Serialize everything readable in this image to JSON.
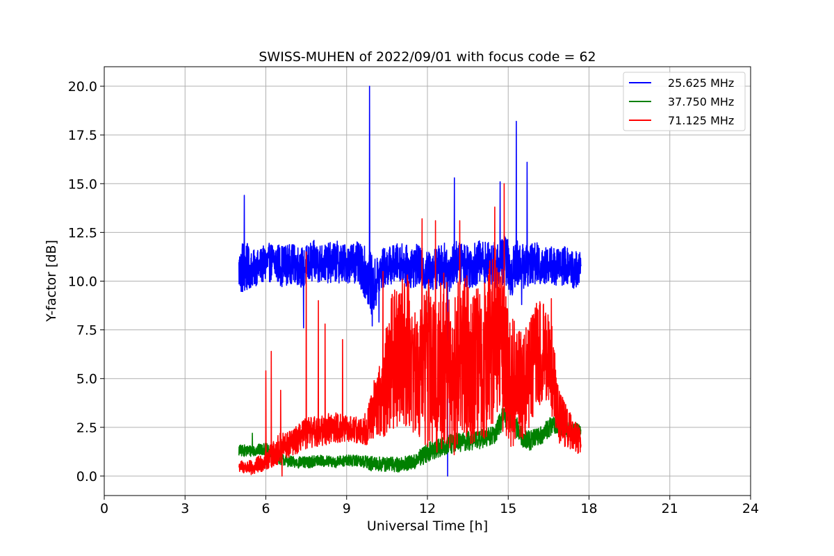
{
  "chart_data": {
    "type": "line",
    "title": "SWISS-MUHEN of 2022/09/01 with focus code = 62",
    "xlabel": "Universal Time [h]",
    "ylabel": "Y-factor [dB]",
    "xlim": [
      0,
      24
    ],
    "ylim": [
      -1,
      21
    ],
    "xticks": [
      0,
      3,
      6,
      9,
      12,
      15,
      18,
      21,
      24
    ],
    "xtick_labels": [
      "0",
      "3",
      "6",
      "9",
      "12",
      "15",
      "18",
      "21",
      "24"
    ],
    "yticks": [
      0,
      2.5,
      5,
      7.5,
      10,
      12.5,
      15,
      17.5,
      20
    ],
    "ytick_labels": [
      "0.0",
      "2.5",
      "5.0",
      "7.5",
      "10.0",
      "12.5",
      "15.0",
      "17.5",
      "20.0"
    ],
    "grid": true,
    "legend_position": "top-right",
    "series": [
      {
        "name": "25.625 MHz",
        "color": "#0000ff",
        "x": [
          5.0,
          5.2,
          5.4,
          5.7,
          6.0,
          6.3,
          6.6,
          7.0,
          7.4,
          7.8,
          8.2,
          8.6,
          9.0,
          9.3,
          9.6,
          9.8,
          10.0,
          10.3,
          10.6,
          11.0,
          11.3,
          11.6,
          12.0,
          12.3,
          12.6,
          12.8,
          13.0,
          13.3,
          13.6,
          14.0,
          14.3,
          14.6,
          14.9,
          15.1,
          15.3,
          15.6,
          15.9,
          16.2,
          16.5,
          16.8,
          17.1,
          17.4,
          17.7
        ],
        "mean": [
          10.5,
          10.8,
          10.6,
          10.7,
          10.9,
          11.0,
          10.8,
          10.9,
          10.7,
          11.0,
          10.9,
          11.0,
          10.9,
          11.0,
          10.6,
          10.2,
          9.6,
          10.6,
          10.8,
          11.0,
          10.7,
          10.8,
          10.5,
          10.7,
          10.8,
          10.6,
          11.0,
          10.9,
          10.8,
          11.0,
          10.9,
          10.8,
          11.2,
          10.3,
          11.0,
          10.7,
          11.0,
          10.8,
          10.9,
          10.7,
          10.8,
          10.6,
          10.6
        ],
        "spread": [
          1.1,
          1.6,
          1.0,
          0.9,
          1.0,
          1.0,
          1.1,
          1.0,
          1.1,
          1.1,
          1.0,
          1.1,
          1.0,
          1.1,
          1.2,
          1.6,
          1.5,
          1.1,
          1.0,
          1.0,
          1.1,
          1.1,
          1.0,
          1.1,
          1.2,
          1.2,
          1.1,
          1.1,
          1.2,
          1.1,
          1.1,
          1.2,
          1.3,
          1.3,
          1.2,
          1.1,
          1.1,
          1.1,
          1.0,
          1.0,
          1.0,
          1.0,
          0.9
        ],
        "spikes": [
          [
            5.2,
            14.4
          ],
          [
            7.4,
            7.6
          ],
          [
            9.85,
            20.0
          ],
          [
            9.95,
            7.7
          ],
          [
            10.2,
            7.9
          ],
          [
            12.75,
            0.0
          ],
          [
            13.0,
            15.3
          ],
          [
            14.7,
            15.1
          ],
          [
            15.3,
            18.2
          ],
          [
            15.7,
            16.1
          ],
          [
            15.5,
            8.8
          ]
        ]
      },
      {
        "name": "37.750 MHz",
        "color": "#008000",
        "x": [
          5.0,
          5.5,
          6.0,
          6.5,
          7.0,
          7.5,
          8.0,
          8.5,
          9.0,
          9.5,
          10.0,
          10.5,
          11.0,
          11.5,
          12.0,
          12.5,
          13.0,
          13.5,
          14.0,
          14.5,
          14.8,
          15.0,
          15.2,
          15.5,
          15.8,
          16.0,
          16.3,
          16.6,
          17.0,
          17.4,
          17.7
        ],
        "mean": [
          1.3,
          1.3,
          1.4,
          0.9,
          0.7,
          0.7,
          0.8,
          0.7,
          0.8,
          0.8,
          0.6,
          0.6,
          0.6,
          0.7,
          1.2,
          1.5,
          1.7,
          1.8,
          1.9,
          2.1,
          3.0,
          3.2,
          2.8,
          2.0,
          1.8,
          2.0,
          2.2,
          2.6,
          2.5,
          2.3,
          2.4
        ],
        "spread": [
          0.3,
          0.3,
          0.3,
          0.3,
          0.3,
          0.3,
          0.3,
          0.3,
          0.3,
          0.3,
          0.4,
          0.4,
          0.4,
          0.4,
          0.5,
          0.5,
          0.5,
          0.5,
          0.5,
          0.5,
          0.6,
          0.6,
          0.6,
          0.5,
          0.5,
          0.5,
          0.5,
          0.5,
          0.4,
          0.4,
          0.3
        ],
        "spikes": [
          [
            5.5,
            2.2
          ],
          [
            14.8,
            4.0
          ]
        ]
      },
      {
        "name": "71.125 MHz",
        "color": "#ff0000",
        "x": [
          5.0,
          5.5,
          6.0,
          6.5,
          7.0,
          7.5,
          8.0,
          8.5,
          9.0,
          9.5,
          9.8,
          10.0,
          10.3,
          10.6,
          11.0,
          11.3,
          11.6,
          12.0,
          12.3,
          12.6,
          13.0,
          13.3,
          13.6,
          14.0,
          14.3,
          14.6,
          15.0,
          15.3,
          15.6,
          16.0,
          16.3,
          16.6,
          16.9,
          17.2,
          17.5,
          17.7
        ],
        "mean": [
          0.5,
          0.4,
          0.8,
          1.4,
          1.7,
          2.2,
          2.3,
          2.5,
          2.4,
          2.3,
          2.6,
          3.4,
          4.0,
          5.5,
          6.5,
          6.5,
          5.0,
          6.0,
          5.0,
          6.0,
          5.0,
          6.5,
          6.0,
          5.5,
          6.5,
          7.5,
          5.5,
          4.5,
          5.0,
          6.0,
          6.5,
          5.5,
          3.0,
          2.5,
          2.0,
          1.8
        ],
        "spread": [
          0.3,
          0.4,
          0.5,
          0.8,
          0.7,
          0.8,
          0.8,
          0.8,
          0.7,
          0.7,
          1.0,
          1.5,
          2.0,
          3.5,
          4.0,
          4.0,
          3.0,
          4.5,
          4.0,
          4.5,
          4.0,
          4.5,
          4.5,
          4.0,
          4.5,
          4.5,
          4.0,
          3.0,
          3.0,
          3.0,
          2.5,
          2.5,
          1.5,
          1.0,
          0.8,
          0.7
        ],
        "spikes": [
          [
            6.0,
            5.4
          ],
          [
            6.2,
            6.4
          ],
          [
            6.55,
            4.4
          ],
          [
            7.5,
            11.5
          ],
          [
            7.95,
            9.0
          ],
          [
            8.2,
            7.8
          ],
          [
            8.85,
            7.0
          ],
          [
            10.35,
            10.5
          ],
          [
            11.8,
            13.2
          ],
          [
            12.3,
            13.1
          ],
          [
            13.2,
            13.1
          ],
          [
            14.5,
            13.8
          ],
          [
            14.85,
            15.0
          ],
          [
            16.6,
            9.1
          ],
          [
            6.6,
            0.0
          ]
        ]
      }
    ]
  }
}
